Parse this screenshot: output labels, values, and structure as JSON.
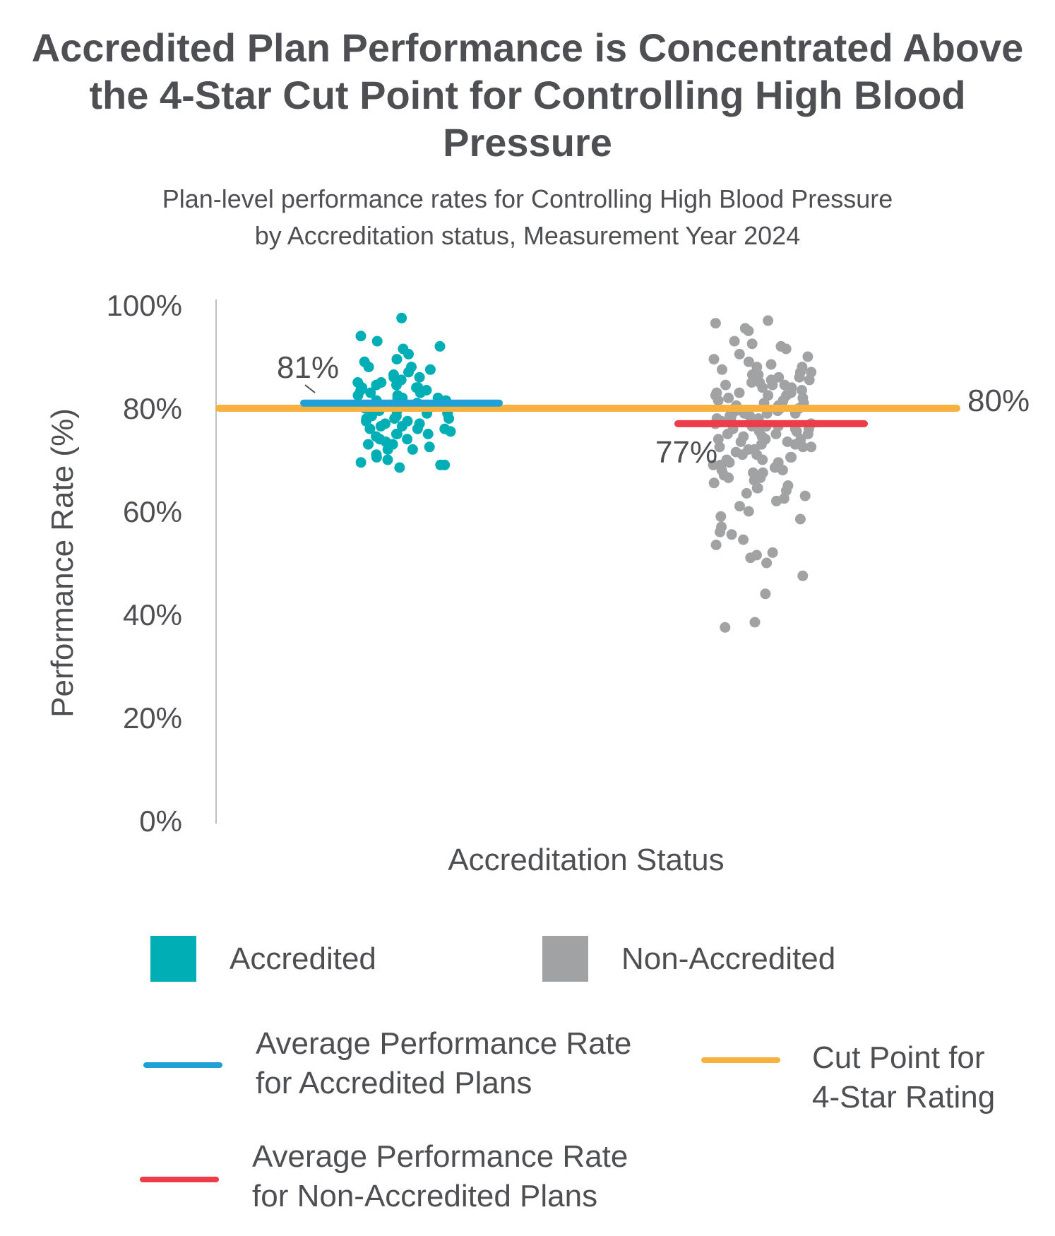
{
  "title": "Accredited Plan Performance is Concentrated Above the 4-Star Cut Point for Controlling High Blood Pressure",
  "subtitle_line1": "Plan-level performance rates for Controlling High Blood Pressure",
  "subtitle_line2": "by Accreditation status, Measurement Year 2024",
  "colors": {
    "accredited": "#00aeb5",
    "non_accredited": "#a0a2a4",
    "avg_accredited": "#1fa0d6",
    "avg_non_accredited": "#ee3d4a",
    "cut_point": "#f6b13e",
    "text": "#4d4f53",
    "axis": "#bfbfbf"
  },
  "legend": {
    "accredited": "Accredited",
    "non_accredited": "Non-Accredited",
    "avg_accredited_line1": "Average Performance Rate",
    "avg_accredited_line2": "for Accredited Plans",
    "avg_non_accredited_line1": "Average Performance Rate",
    "avg_non_accredited_line2": "for Non-Accredited Plans",
    "cut_point_line1": "Cut Point for",
    "cut_point_line2": "4-Star Rating"
  },
  "chart_data": {
    "type": "scatter",
    "xlabel": "Accreditation Status",
    "ylabel": "Performance Rate (%)",
    "ylim": [
      0,
      100
    ],
    "yticks": [
      "0%",
      "20%",
      "40%",
      "60%",
      "80%",
      "100%"
    ],
    "grid": false,
    "categories": [
      "Accredited",
      "Non-Accredited"
    ],
    "reference_lines": {
      "cut_point": {
        "value": 80,
        "label": "80%"
      },
      "avg_accredited": {
        "value": 81,
        "label": "81%"
      },
      "avg_non_accredited": {
        "value": 77,
        "label": "77%"
      }
    },
    "series": [
      {
        "name": "Accredited",
        "values": [
          97.5,
          90.5,
          89.0,
          93.0,
          89.5,
          91.5,
          94.0,
          92.0,
          88.0,
          86.5,
          85.0,
          87.5,
          84.0,
          83.5,
          82.0,
          84.5,
          86.0,
          88.0,
          87.0,
          85.5,
          83.0,
          82.5,
          81.5,
          80.5,
          80.0,
          79.5,
          79.0,
          78.5,
          78.0,
          77.5,
          77.0,
          76.5,
          76.0,
          75.5,
          75.0,
          74.5,
          74.0,
          73.5,
          73.0,
          72.5,
          72.0,
          70.0,
          69.5,
          69.0,
          70.5,
          69.0,
          68.5,
          71.0,
          72.0,
          73.0,
          75.0,
          76.0,
          78.0,
          80.0,
          82.0,
          84.0,
          85.0,
          86.0,
          83.0,
          81.0,
          79.0,
          77.0,
          75.0,
          76.5,
          78.5,
          80.5,
          82.5,
          84.5,
          79.5,
          81.5,
          83.5,
          77.5,
          74.0,
          80.0,
          82.0,
          78.0,
          76.0,
          81.0,
          79.0,
          84.0
        ]
      },
      {
        "name": "Non-Accredited",
        "values": [
          97.0,
          96.5,
          95.5,
          95.0,
          93.0,
          92.5,
          92.0,
          91.5,
          90.5,
          90.0,
          89.5,
          89.0,
          88.5,
          88.0,
          87.5,
          87.0,
          86.5,
          86.0,
          85.5,
          85.0,
          84.5,
          84.0,
          83.5,
          83.0,
          82.5,
          82.0,
          81.5,
          81.0,
          80.5,
          80.0,
          79.5,
          79.0,
          78.5,
          78.0,
          77.5,
          77.0,
          76.5,
          76.0,
          75.5,
          75.0,
          74.5,
          74.0,
          73.5,
          73.0,
          72.5,
          72.0,
          71.5,
          71.0,
          70.5,
          70.0,
          69.5,
          69.0,
          68.5,
          68.0,
          67.5,
          67.0,
          66.5,
          66.0,
          65.5,
          65.0,
          64.5,
          64.0,
          63.5,
          63.0,
          62.5,
          62.0,
          61.0,
          60.0,
          59.0,
          58.5,
          57.0,
          56.0,
          55.5,
          54.5,
          53.5,
          52.0,
          51.5,
          51.0,
          50.0,
          47.5,
          44.0,
          38.5,
          37.5,
          88.0,
          86.0,
          84.0,
          82.0,
          80.0,
          78.0,
          76.0,
          74.0,
          72.0,
          70.0,
          68.0,
          83.0,
          81.0,
          79.0,
          77.0,
          75.0,
          73.0,
          71.0,
          69.0,
          85.5,
          82.5,
          79.5,
          76.5,
          73.5,
          70.5,
          67.5,
          64.5,
          87.0,
          84.5,
          81.5,
          78.5,
          75.5,
          72.5,
          69.5,
          66.5,
          80.0,
          78.0,
          76.0,
          74.0,
          79.0,
          77.0,
          75.0,
          81.0,
          83.0,
          85.0,
          78.5,
          76.5,
          80.5,
          82.5,
          74.5,
          72.5,
          84.5,
          86.5,
          79.5,
          77.5
        ]
      }
    ]
  }
}
